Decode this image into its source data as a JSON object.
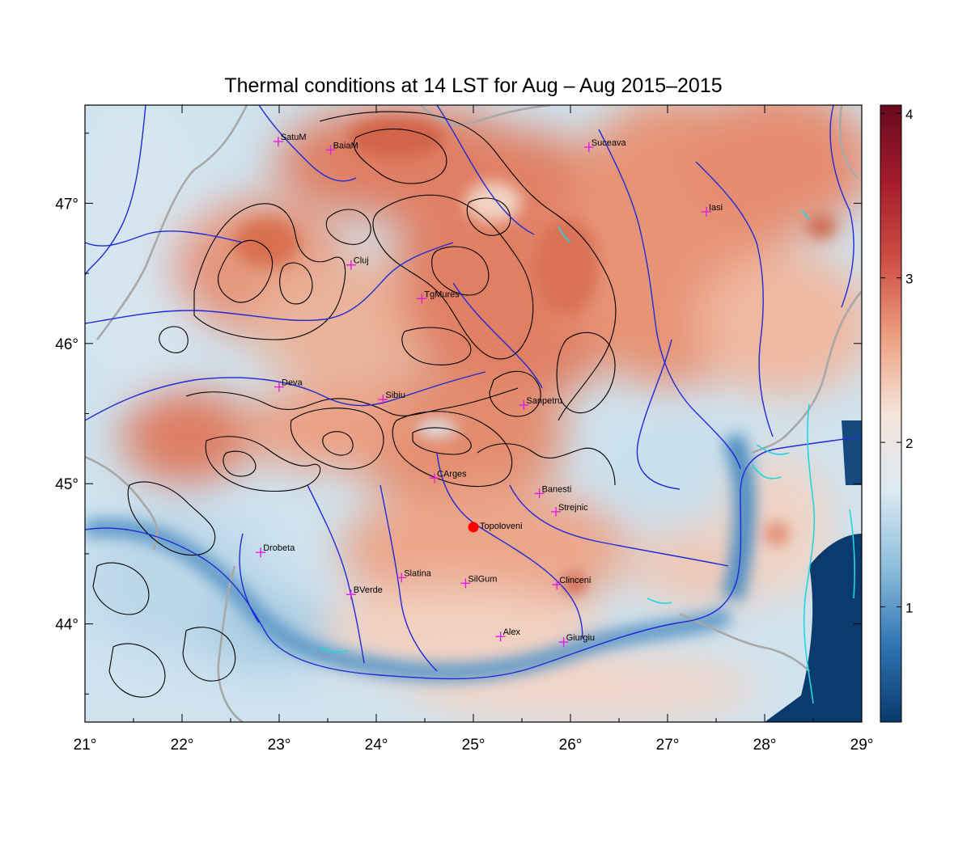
{
  "title": "Thermal conditions at 14 LST for Aug – Aug  2015–2015",
  "map": {
    "lon_range": [
      21,
      29
    ],
    "lat_range": [
      43.3,
      47.7
    ],
    "x_ticks": [
      "21°",
      "22°",
      "23°",
      "24°",
      "25°",
      "26°",
      "27°",
      "28°",
      "29°"
    ],
    "y_ticks": [
      "44°",
      "45°",
      "46°",
      "47°"
    ],
    "x_tick_values": [
      21,
      22,
      23,
      24,
      25,
      26,
      27,
      28,
      29
    ],
    "y_tick_values": [
      44,
      45,
      46,
      47
    ]
  },
  "colorbar": {
    "range": [
      0.3,
      4.05
    ],
    "ticks": [
      "1",
      "2",
      "3",
      "4"
    ],
    "tick_values": [
      1,
      2,
      3,
      4
    ],
    "colors": [
      "#0a3a6b",
      "#2f74b4",
      "#8dbedb",
      "#dbe9f2",
      "#f5e4da",
      "#ee9f80",
      "#cd4e43",
      "#a51c2c",
      "#670a1e"
    ]
  },
  "cities": [
    {
      "name": "SatuM",
      "lon": 22.99,
      "lat": 47.44
    },
    {
      "name": "BaiaM",
      "lon": 23.53,
      "lat": 47.38
    },
    {
      "name": "Suceava",
      "lon": 26.19,
      "lat": 47.4
    },
    {
      "name": "Iasi",
      "lon": 27.4,
      "lat": 46.94
    },
    {
      "name": "Cluj",
      "lon": 23.74,
      "lat": 46.56
    },
    {
      "name": "TgMures",
      "lon": 24.47,
      "lat": 46.32
    },
    {
      "name": "Deva",
      "lon": 23.0,
      "lat": 45.69
    },
    {
      "name": "Sibiu",
      "lon": 24.07,
      "lat": 45.6
    },
    {
      "name": "Sanpetru",
      "lon": 25.52,
      "lat": 45.56
    },
    {
      "name": "CArges",
      "lon": 24.6,
      "lat": 45.04
    },
    {
      "name": "Banesti",
      "lon": 25.68,
      "lat": 44.93
    },
    {
      "name": "Strejnic",
      "lon": 25.85,
      "lat": 44.8
    },
    {
      "name": "Drobeta",
      "lon": 22.81,
      "lat": 44.51
    },
    {
      "name": "Slatina",
      "lon": 24.26,
      "lat": 44.33
    },
    {
      "name": "SilGum",
      "lon": 24.92,
      "lat": 44.29
    },
    {
      "name": "BVerde",
      "lon": 23.74,
      "lat": 44.21
    },
    {
      "name": "Clinceni",
      "lon": 25.86,
      "lat": 44.28
    },
    {
      "name": "Alex",
      "lon": 25.28,
      "lat": 43.91
    },
    {
      "name": "Giurgiu",
      "lon": 25.93,
      "lat": 43.87
    }
  ],
  "highlight": {
    "name": "Topoloveni",
    "lon": 25.0,
    "lat": 44.69,
    "color": "#ff0000"
  },
  "colors": {
    "city_marker": "#e01ee0",
    "river": "#1f2bd6",
    "lake": "#1fd6e0",
    "border": "#a8a8a8",
    "contour": "#000000"
  }
}
